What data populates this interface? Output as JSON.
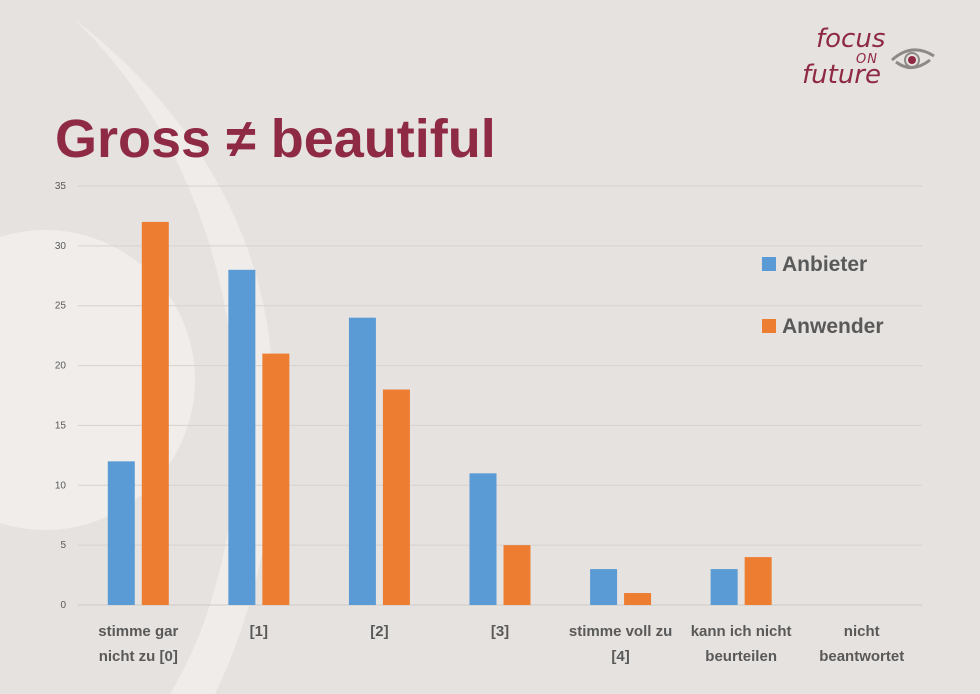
{
  "slide": {
    "title": "Gross ≠ beautiful",
    "logo": {
      "line1": "focus",
      "line2": "ON",
      "line3": "future"
    }
  },
  "colors": {
    "background": "#e6e2df",
    "title": "#8f2a45",
    "anbieter": "#5b9bd5",
    "anwender": "#ed7d31",
    "grid": "#d6d2cf"
  },
  "chart_data": {
    "type": "bar",
    "title": "",
    "xlabel": "",
    "ylabel": "",
    "ylim": [
      0,
      35
    ],
    "yticks": [
      0,
      5,
      10,
      15,
      20,
      25,
      30,
      35
    ],
    "grid": true,
    "legend_position": "right",
    "categories": [
      [
        "stimme gar",
        "nicht zu [0]"
      ],
      [
        "[1]"
      ],
      [
        "[2]"
      ],
      [
        "[3]"
      ],
      [
        "stimme voll zu",
        "[4]"
      ],
      [
        "kann ich nicht",
        "beurteilen"
      ],
      [
        "nicht",
        "beantwortet"
      ]
    ],
    "series": [
      {
        "name": "Anbieter",
        "color": "#5b9bd5",
        "values": [
          12,
          28,
          24,
          11,
          3,
          3,
          0
        ]
      },
      {
        "name": "Anwender",
        "color": "#ed7d31",
        "values": [
          32,
          21,
          18,
          5,
          1,
          4,
          0
        ]
      }
    ]
  }
}
